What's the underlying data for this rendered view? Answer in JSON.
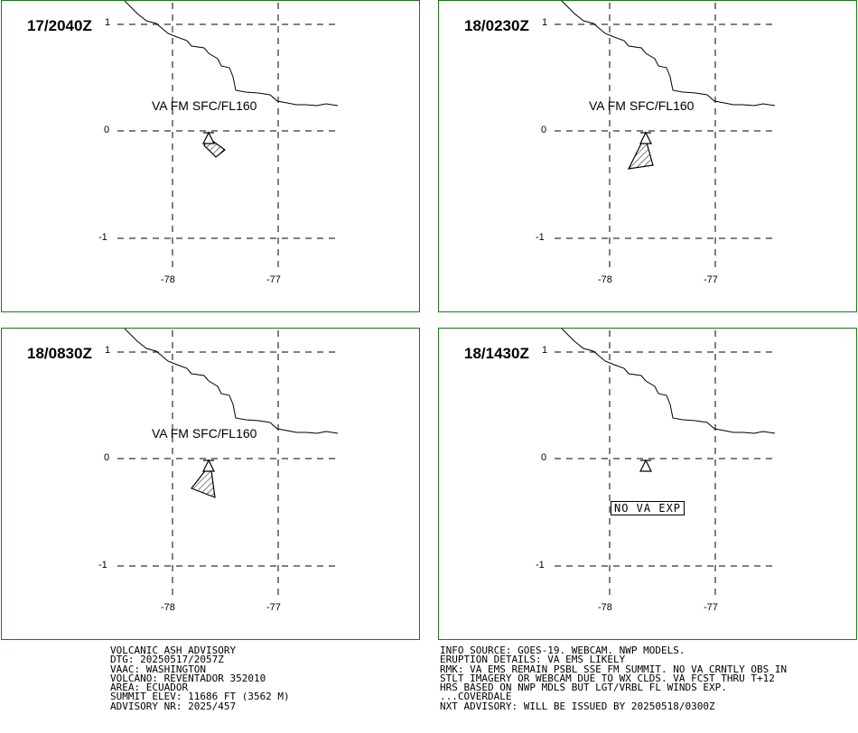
{
  "panels": [
    {
      "time": "17/2040Z",
      "va_label": "VA FM SFC/FL160",
      "ash_shape": "small",
      "no_va": ""
    },
    {
      "time": "18/0230Z",
      "va_label": "VA FM SFC/FL160",
      "ash_shape": "medium",
      "no_va": ""
    },
    {
      "time": "18/0830Z",
      "va_label": "VA FM SFC/FL160",
      "ash_shape": "medium-sw",
      "no_va": ""
    },
    {
      "time": "18/1430Z",
      "va_label": "",
      "ash_shape": "none",
      "no_va": "NO VA EXP"
    }
  ],
  "axes": {
    "lat_ticks": [
      "1",
      "0",
      "-1"
    ],
    "lon_ticks": [
      "-78",
      "-77"
    ]
  },
  "advisory_left": [
    "VOLCANIC ASH ADVISORY",
    "DTG: 20250517/2057Z",
    "VAAC: WASHINGTON",
    "VOLCANO: REVENTADOR 352010",
    "AREA: ECUADOR",
    "SUMMIT ELEV: 11686 FT (3562 M)",
    "ADVISORY NR: 2025/457"
  ],
  "advisory_right": [
    "INFO SOURCE: GOES-19. WEBCAM. NWP MODELS.",
    "ERUPTION DETAILS: VA EMS LIKELY",
    "RMK: VA EMS REMAIN PSBL SSE FM SUMMIT. NO VA CRNTLY OBS IN",
    "STLT IMAGERY OR WEBCAM DUE TO WX CLDS. VA FCST THRU T+12",
    "HRS BASED ON NWP MDLS BUT LGT/VRBL FL WINDS EXP.",
    "...COVERDALE",
    "NXT ADVISORY: WILL BE ISSUED BY 20250518/0300Z"
  ],
  "colors": {
    "frame": "#1a7a1a",
    "ink": "#000000"
  },
  "icons": {
    "volcano": "volcano-triangle-icon"
  }
}
